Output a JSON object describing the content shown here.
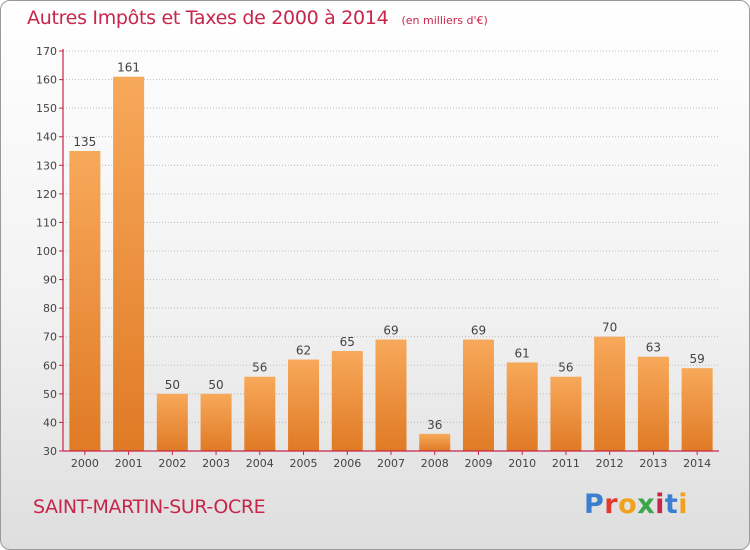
{
  "title": "Autres Impôts et Taxes de 2000 à 2014",
  "unit": "(en milliers d'€)",
  "commune": "SAINT-MARTIN-SUR-OCRE",
  "logo": {
    "letters": [
      {
        "ch": "P",
        "color": "#3a7fd0"
      },
      {
        "ch": "r",
        "color": "#e23a2e"
      },
      {
        "ch": "o",
        "color": "#f0a21e"
      },
      {
        "ch": "x",
        "color": "#3aa64a"
      },
      {
        "ch": "i",
        "color": "#c8254a"
      },
      {
        "ch": "t",
        "color": "#3a7fd0"
      },
      {
        "ch": "i",
        "color": "#f0a21e"
      }
    ]
  },
  "colors": {
    "bar_light": "#f7a95a",
    "bar_dark": "#e07a25",
    "axis": "#c8254a",
    "text": "#444444",
    "grid": "#bbbbbb"
  },
  "chart_data": {
    "type": "bar",
    "categories": [
      "2000",
      "2001",
      "2002",
      "2003",
      "2004",
      "2005",
      "2006",
      "2007",
      "2008",
      "2009",
      "2010",
      "2011",
      "2012",
      "2013",
      "2014"
    ],
    "values": [
      135,
      161,
      50,
      50,
      56,
      62,
      65,
      69,
      36,
      69,
      61,
      56,
      70,
      63,
      59
    ],
    "ylim": [
      30,
      170
    ],
    "yticks": [
      30,
      40,
      50,
      60,
      70,
      80,
      90,
      100,
      110,
      120,
      130,
      140,
      150,
      160,
      170
    ],
    "grid": true,
    "legend": "none"
  }
}
